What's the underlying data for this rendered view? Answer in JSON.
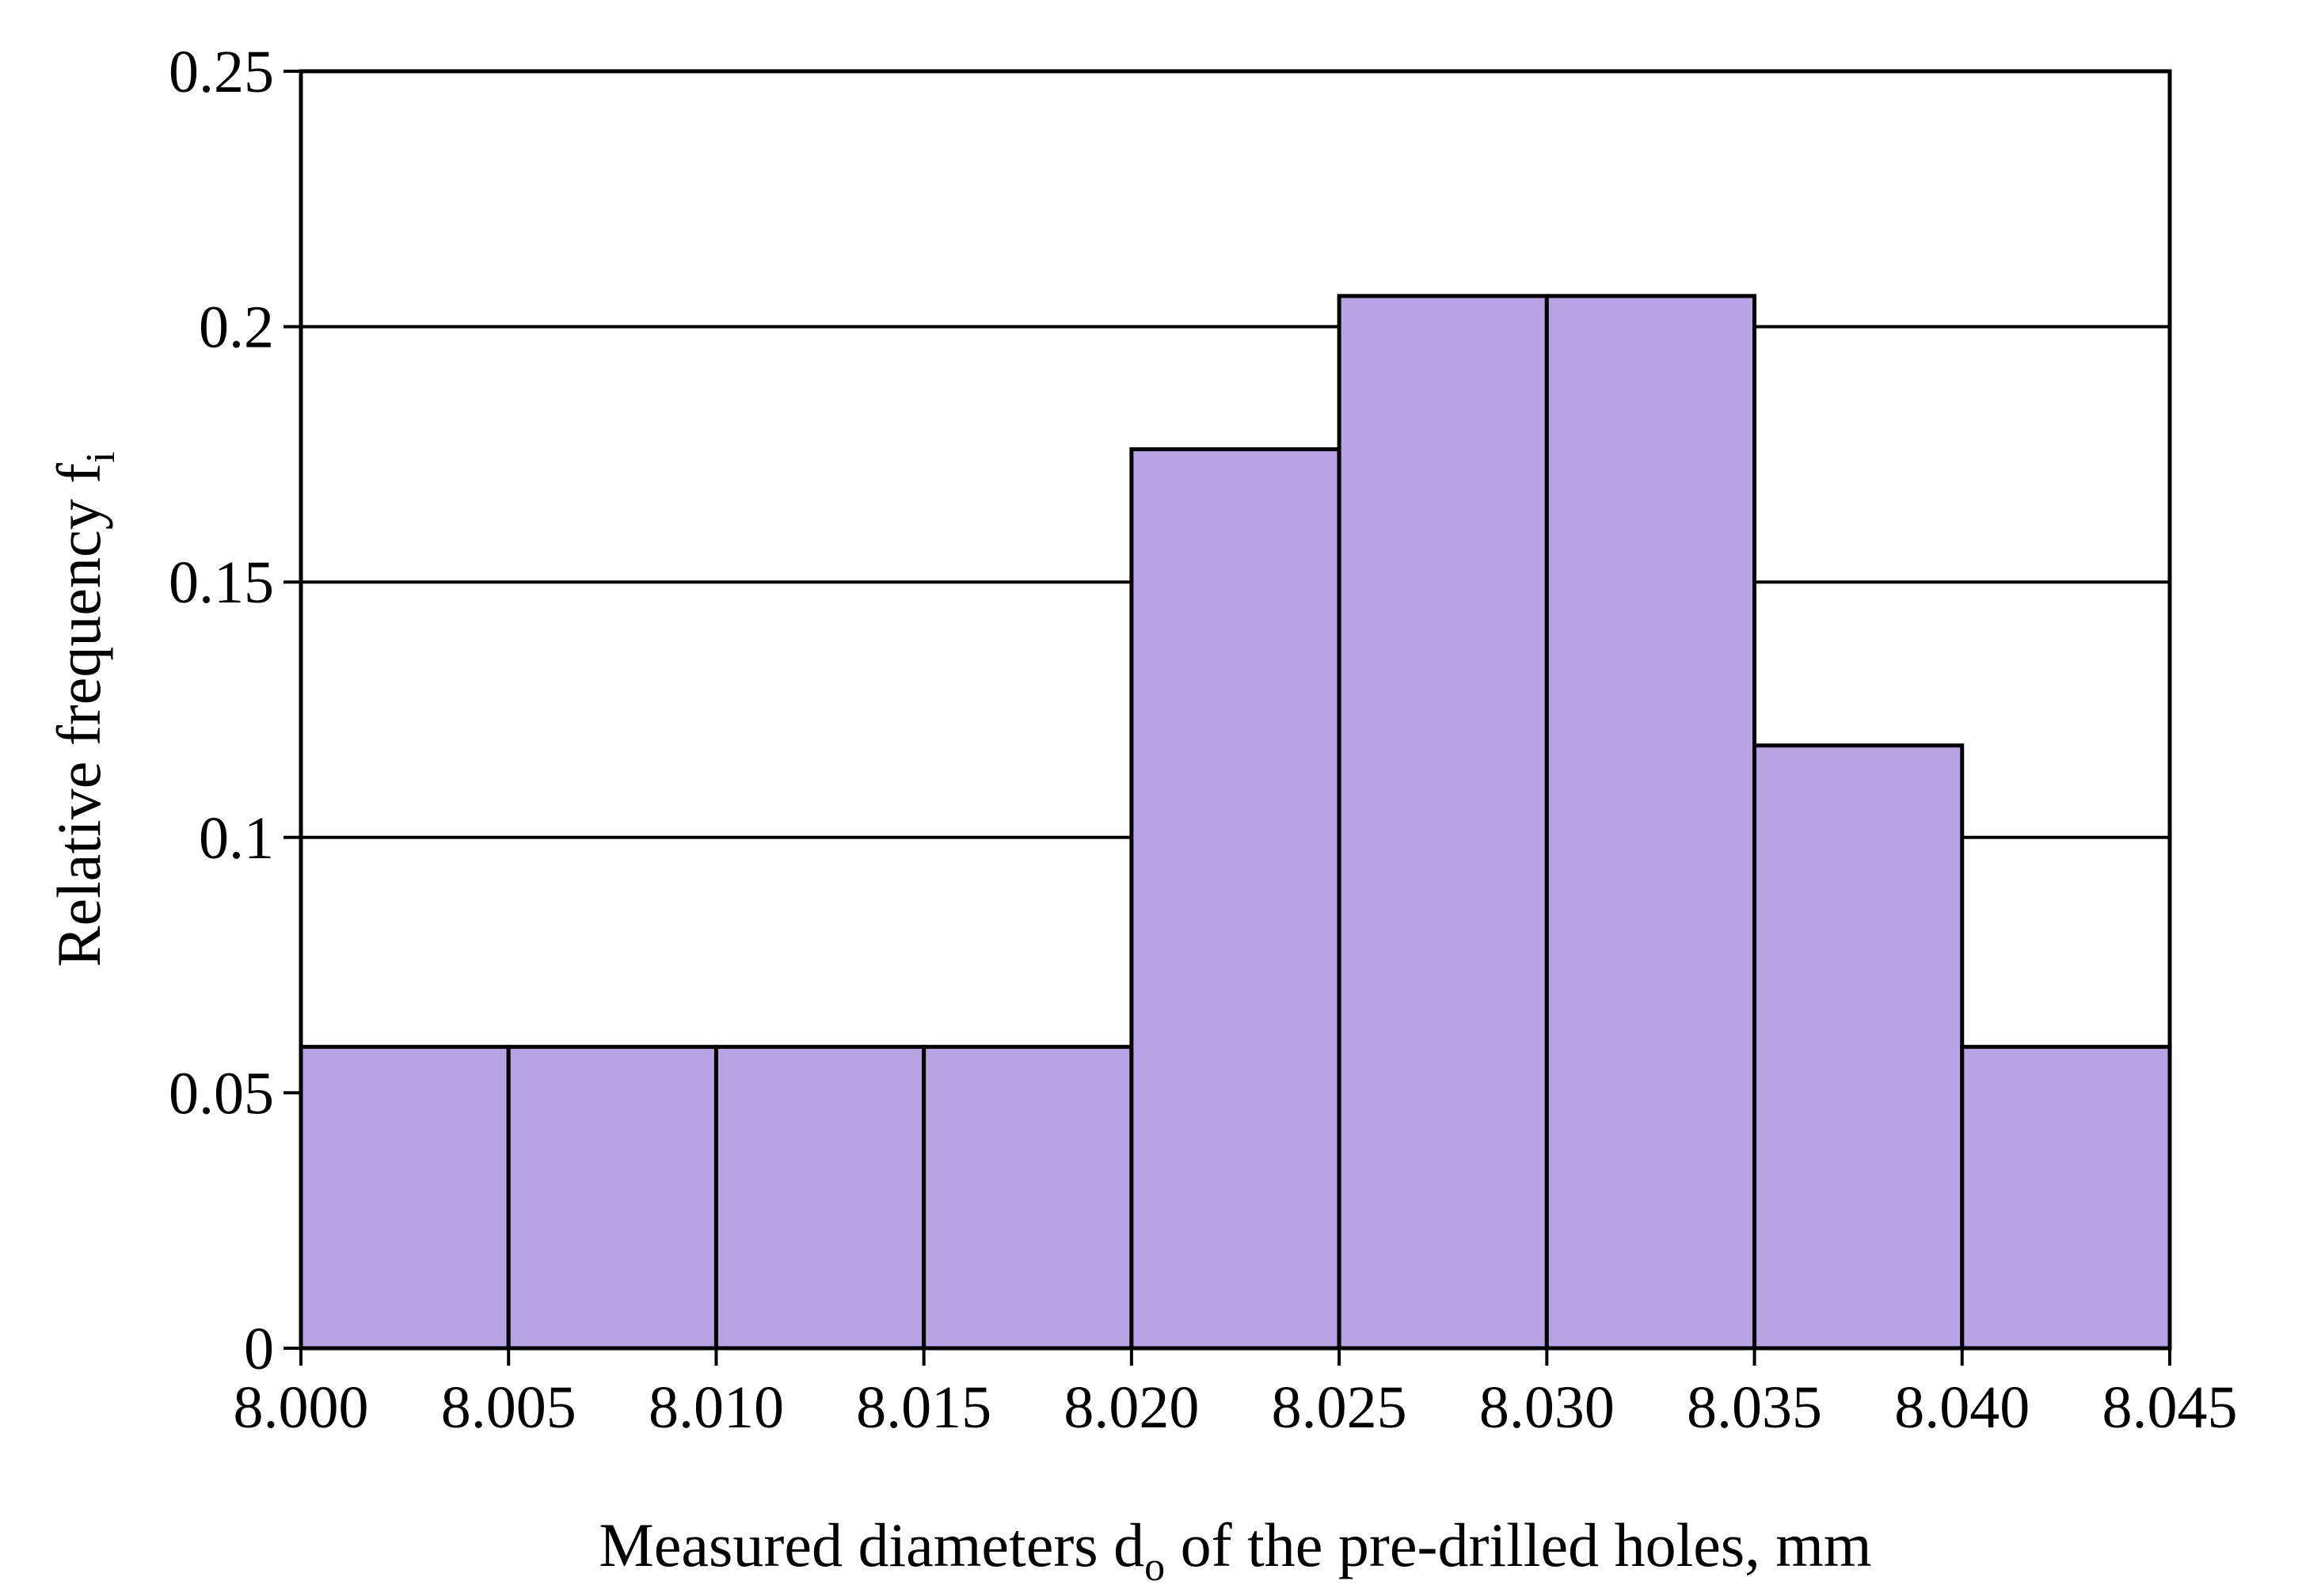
{
  "chart_data": {
    "type": "bar",
    "histogram": true,
    "bin_edges": [
      "8.000",
      "8.005",
      "8.010",
      "8.015",
      "8.020",
      "8.025",
      "8.030",
      "8.035",
      "8.040",
      "8.045"
    ],
    "values": [
      0.059,
      0.059,
      0.059,
      0.059,
      0.176,
      0.206,
      0.206,
      0.118,
      0.059
    ],
    "ylim": [
      0,
      0.25
    ],
    "xlim": [
      8.0,
      8.045
    ],
    "y_ticks": [
      0,
      0.05,
      0.1,
      0.15,
      0.2,
      0.25
    ],
    "y_tick_labels": [
      "0",
      "0.05",
      "0.1",
      "0.15",
      "0.2",
      "0.25"
    ],
    "xlabel": {
      "main": "Measured diameters d",
      "sub": "o",
      "rest": " of the pre-drilled holes, mm"
    },
    "ylabel": {
      "main": "Relative frequency  f",
      "sub": "i"
    },
    "grid": true,
    "bar_color": "#b8a4e4",
    "edge_color": "#000000"
  }
}
